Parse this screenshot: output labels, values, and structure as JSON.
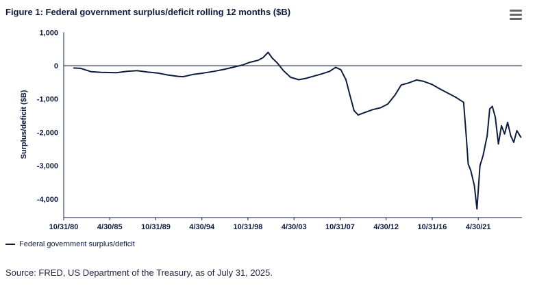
{
  "title": "Figure 1: Federal government surplus/deficit rolling 12 months ($B)",
  "menu_icon": "hamburger-menu-icon",
  "source": "Source: FRED, US Department of the Treasury, as of July 31, 2025.",
  "chart_data": {
    "type": "line",
    "title": "Figure 1: Federal government surplus/deficit rolling 12 months ($B)",
    "xlabel": "",
    "ylabel": "Surplus/deficit ($B)",
    "ylim": [
      -4560,
      1000
    ],
    "yticks": [
      1000,
      0,
      -1000,
      -2000,
      -3000,
      -4000
    ],
    "ytick_labels": [
      "1,000",
      "0",
      "-1,000",
      "-2,000",
      "-3,000",
      "-4,000"
    ],
    "xticks": [
      1980.83,
      1985.33,
      1989.83,
      1994.33,
      1998.83,
      2003.33,
      2007.83,
      2012.33,
      2016.83,
      2021.33
    ],
    "xtick_labels": [
      "10/31/80",
      "4/30/85",
      "10/31/89",
      "4/30/94",
      "10/31/98",
      "4/30/03",
      "10/31/07",
      "4/30/12",
      "10/31/16",
      "4/30/21"
    ],
    "xlim": [
      1980.83,
      2025.6
    ],
    "line_color": "#0d1b3e",
    "legend": "bottom-left",
    "series": [
      {
        "name": "Federal government surplus/deficit",
        "x": [
          1981.8,
          1982.5,
          1983.5,
          1984.5,
          1986,
          1987,
          1988,
          1989,
          1990,
          1991,
          1992,
          1992.5,
          1993.5,
          1994.5,
          1995.5,
          1996.5,
          1997.5,
          1998.3,
          1999,
          1999.8,
          2000.3,
          2000.8,
          2001.2,
          2001.7,
          2002.3,
          2003,
          2003.8,
          2004.5,
          2005.3,
          2006,
          2006.8,
          2007.4,
          2007.9,
          2008.4,
          2008.8,
          2009.2,
          2009.6,
          2010.1,
          2011,
          2011.8,
          2012.5,
          2013.2,
          2013.8,
          2014.5,
          2015.3,
          2016,
          2016.8,
          2017.6,
          2018.4,
          2019.2,
          2019.9,
          2020.15,
          2020.35,
          2020.6,
          2020.95,
          2021.2,
          2021.5,
          2021.8,
          2022.2,
          2022.45,
          2022.7,
          2023,
          2023.3,
          2023.6,
          2023.9,
          2024.2,
          2024.5,
          2024.8,
          2025.1,
          2025.5
        ],
        "values": [
          -70,
          -80,
          -180,
          -200,
          -210,
          -170,
          -150,
          -190,
          -220,
          -280,
          -320,
          -330,
          -260,
          -220,
          -170,
          -110,
          -40,
          20,
          100,
          160,
          240,
          400,
          230,
          80,
          -150,
          -350,
          -420,
          -380,
          -310,
          -250,
          -170,
          -50,
          -120,
          -420,
          -900,
          -1350,
          -1480,
          -1420,
          -1320,
          -1260,
          -1150,
          -880,
          -580,
          -520,
          -430,
          -470,
          -560,
          -700,
          -830,
          -960,
          -1100,
          -2100,
          -2950,
          -3150,
          -3600,
          -4300,
          -3000,
          -2700,
          -2100,
          -1300,
          -1220,
          -1550,
          -2350,
          -1800,
          -2050,
          -1700,
          -2100,
          -2300,
          -1950,
          -2150
        ]
      }
    ]
  }
}
